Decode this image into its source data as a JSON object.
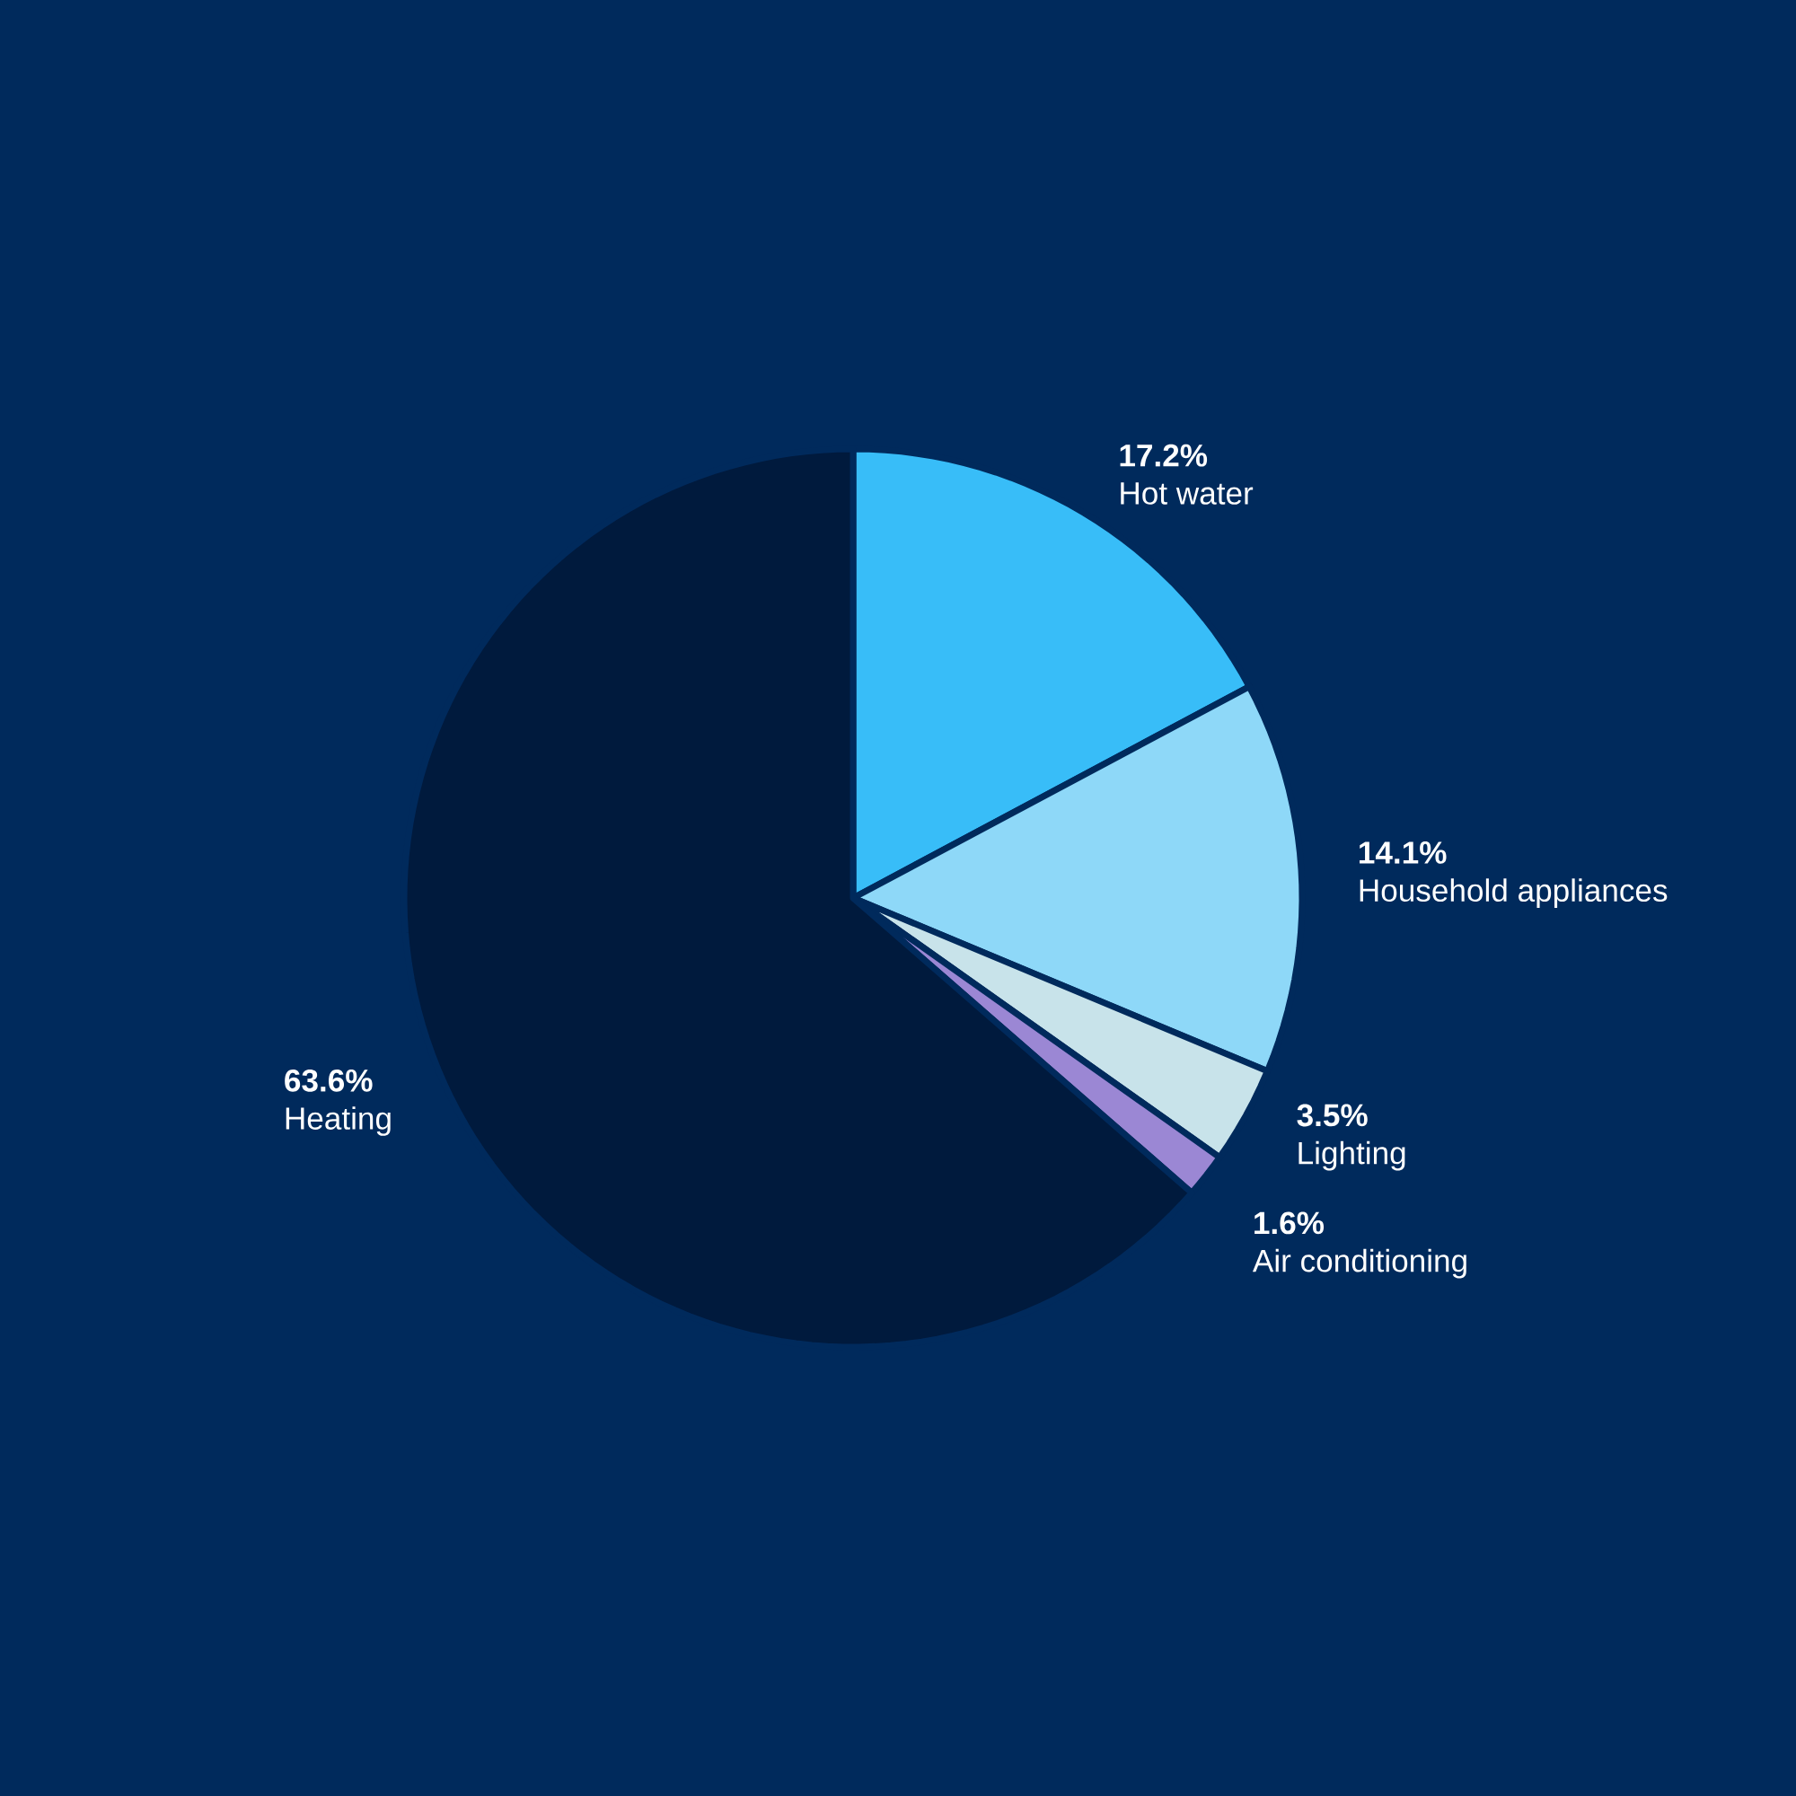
{
  "chart_data": {
    "type": "pie",
    "categories": [
      "Hot water",
      "Household appliances",
      "Lighting",
      "Air conditioning",
      "Heating"
    ],
    "values": [
      17.2,
      14.1,
      3.5,
      1.6,
      63.6
    ],
    "value_labels": [
      "17.2%",
      "14.1%",
      "3.5%",
      "1.6%",
      "63.6%"
    ],
    "colors": [
      "#38bdf8",
      "#8ed8f8",
      "#c8e3ea",
      "#9b87d4",
      "#001a3d"
    ]
  }
}
